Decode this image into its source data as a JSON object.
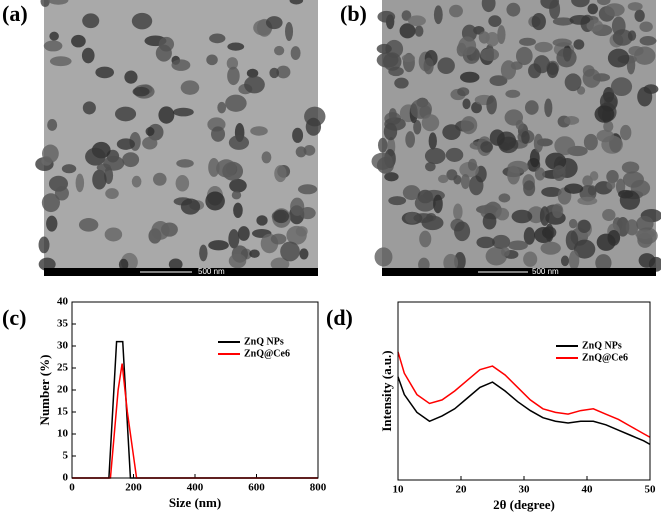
{
  "panels": [
    {
      "label": "(a)",
      "scale_bar": "500 nm"
    },
    {
      "label": "(b)",
      "scale_bar": "500 nm"
    }
  ],
  "chart_data": [
    {
      "type": "line",
      "label": "(c)",
      "xlabel": "Size (nm)",
      "ylabel": "Number (%)",
      "xlim": [
        0,
        800
      ],
      "xticks": [
        0,
        200,
        400,
        600,
        800
      ],
      "ylim": [
        0,
        40
      ],
      "yticks": [
        0,
        5,
        10,
        15,
        20,
        25,
        30,
        35,
        40
      ],
      "legend": "upper right",
      "series": [
        {
          "name": "ZnQ NPs",
          "color": "#000000",
          "x": [
            0,
            120,
            145,
            165,
            190,
            800
          ],
          "values": [
            0,
            0,
            31,
            31,
            0,
            0
          ]
        },
        {
          "name": "ZnQ@Ce6",
          "color": "#ff0000",
          "x": [
            0,
            125,
            150,
            163,
            180,
            210,
            800
          ],
          "values": [
            0,
            0,
            20,
            26,
            15,
            0,
            0
          ]
        }
      ]
    },
    {
      "type": "line",
      "label": "(d)",
      "xlabel": "2θ (degree)",
      "ylabel": "Intensity (a.u.)",
      "xlim": [
        10,
        50
      ],
      "xticks": [
        10,
        20,
        30,
        40,
        50
      ],
      "ylim": [
        0,
        100
      ],
      "legend": "upper right",
      "series": [
        {
          "name": "ZnQ NPs",
          "color": "#000000",
          "x": [
            10,
            11,
            13,
            15,
            17,
            19,
            21,
            23,
            25,
            27,
            29,
            31,
            33,
            35,
            37,
            39,
            41,
            43,
            45,
            47,
            49,
            50
          ],
          "values": [
            58,
            48,
            38,
            33,
            36,
            40,
            46,
            52,
            55,
            50,
            44,
            39,
            35,
            33,
            32,
            33,
            33,
            31,
            28,
            25,
            22,
            20
          ]
        },
        {
          "name": "ZnQ@Ce6",
          "color": "#ff0000",
          "x": [
            10,
            11,
            13,
            15,
            17,
            19,
            21,
            23,
            25,
            27,
            29,
            31,
            33,
            35,
            37,
            39,
            41,
            43,
            45,
            47,
            49,
            50
          ],
          "values": [
            72,
            60,
            48,
            43,
            45,
            50,
            56,
            62,
            64,
            59,
            52,
            45,
            40,
            38,
            37,
            39,
            40,
            37,
            34,
            30,
            26,
            24
          ]
        }
      ]
    }
  ]
}
